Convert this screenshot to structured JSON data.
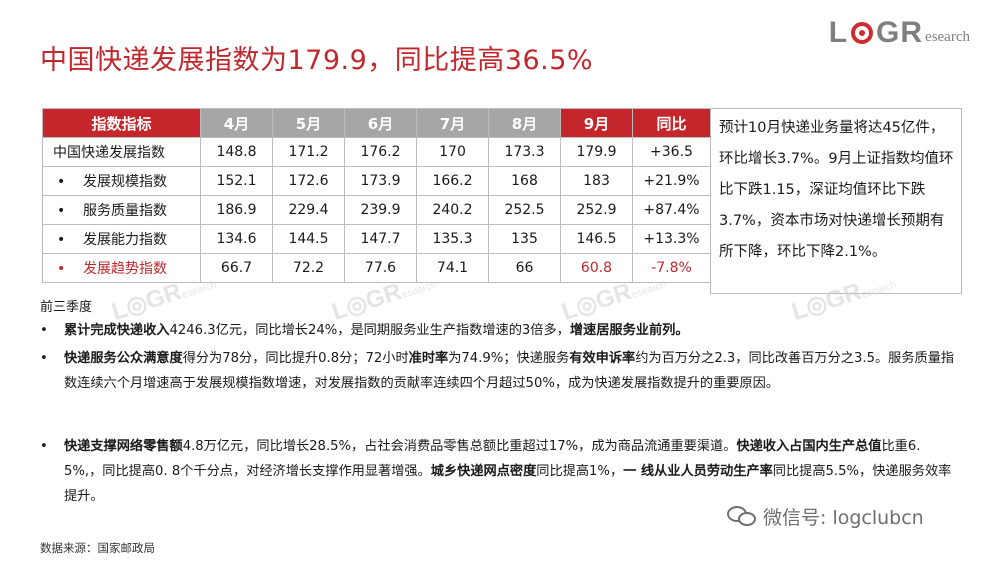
{
  "title": "中国快递发展指数为179.9，同比提高36.5%",
  "logo": {
    "letters_left": "L",
    "letters_right": "GR",
    "suffix": "esearch",
    "brand_color": "#d02b2f"
  },
  "table": {
    "headers": [
      "指数指标",
      "4月",
      "5月",
      "6月",
      "7月",
      "8月",
      "9月",
      "同比"
    ],
    "rows": [
      {
        "name": "中国快递发展指数",
        "bullet": "",
        "values": [
          "148.8",
          "171.2",
          "176.2",
          "170",
          "173.3",
          "179.9",
          "+36.5"
        ]
      },
      {
        "name": "发展规模指数",
        "bullet": "•",
        "values": [
          "152.1",
          "172.6",
          "173.9",
          "166.2",
          "168",
          "183",
          "+21.9%"
        ]
      },
      {
        "name": "服务质量指数",
        "bullet": "•",
        "values": [
          "186.9",
          "229.4",
          "239.9",
          "240.2",
          "252.5",
          "252.9",
          "+87.4%"
        ]
      },
      {
        "name": "发展能力指数",
        "bullet": "•",
        "values": [
          "134.6",
          "144.5",
          "147.7",
          "135.3",
          "135",
          "146.5",
          "+13.3%"
        ]
      },
      {
        "name": "发展趋势指数",
        "bullet": "•",
        "values": [
          "66.7",
          "72.2",
          "77.6",
          "74.1",
          "66",
          "60.8",
          "-7.8%"
        ]
      }
    ]
  },
  "side_note": "预计10月快递业务量将达45亿件，环比增长3.7%。9月上证指数均值环比下跌1.15，深证均值环比下跌3.7%，资本市场对快递增长预期有所下降，环比下降2.1%。",
  "quarter_label": "前三季度",
  "bullets": {
    "b1": {
      "bold1": "累计完成快递收入",
      "t1": "4246.3亿元，同比增长24%，是同期服务业生产指数增速的3倍多，",
      "bold2": "增速居服务业前列。"
    },
    "b2": {
      "bold1": "快递服务公众满意度",
      "t1": "得分为78分，同比提升0.8分；72小时",
      "bold2": "准时率",
      "t2": "为74.9%；快递服务",
      "bold3": "有效申诉率",
      "t3": "约为百万分之2.3，同比改善百万分之3.5。服务质量指数连续六个月增速高于发展规模指数增速，对发展指数的贡献率连续四个月超过50%，成为快递发展指数提升的重要原因。"
    },
    "b3": {
      "bold1": "快递支撑网络零售额",
      "t1": "4.8万亿元，同比增长28.5%，占社会消费品零售总额比重超过17%，成为商品流通重要渠道。",
      "bold2": "快递收入占国内生产总值",
      "t2": "比重6. 5%,，同比提高0. 8个千分点，对经济增长支撑作用显著增强。",
      "bold3": "城乡快递网点密度",
      "t3": "同比提高1%，",
      "bold4": "一 线从业人员劳动生产率",
      "t4": "同比提高5.5%，快递服务效率提升。"
    }
  },
  "source": "数据来源：国家邮政局",
  "wechat": "微信号: logclubcn",
  "colors": {
    "title_red": "#c0282d",
    "header_red": "#c4262b",
    "header_gray": "#a6a6a6"
  }
}
